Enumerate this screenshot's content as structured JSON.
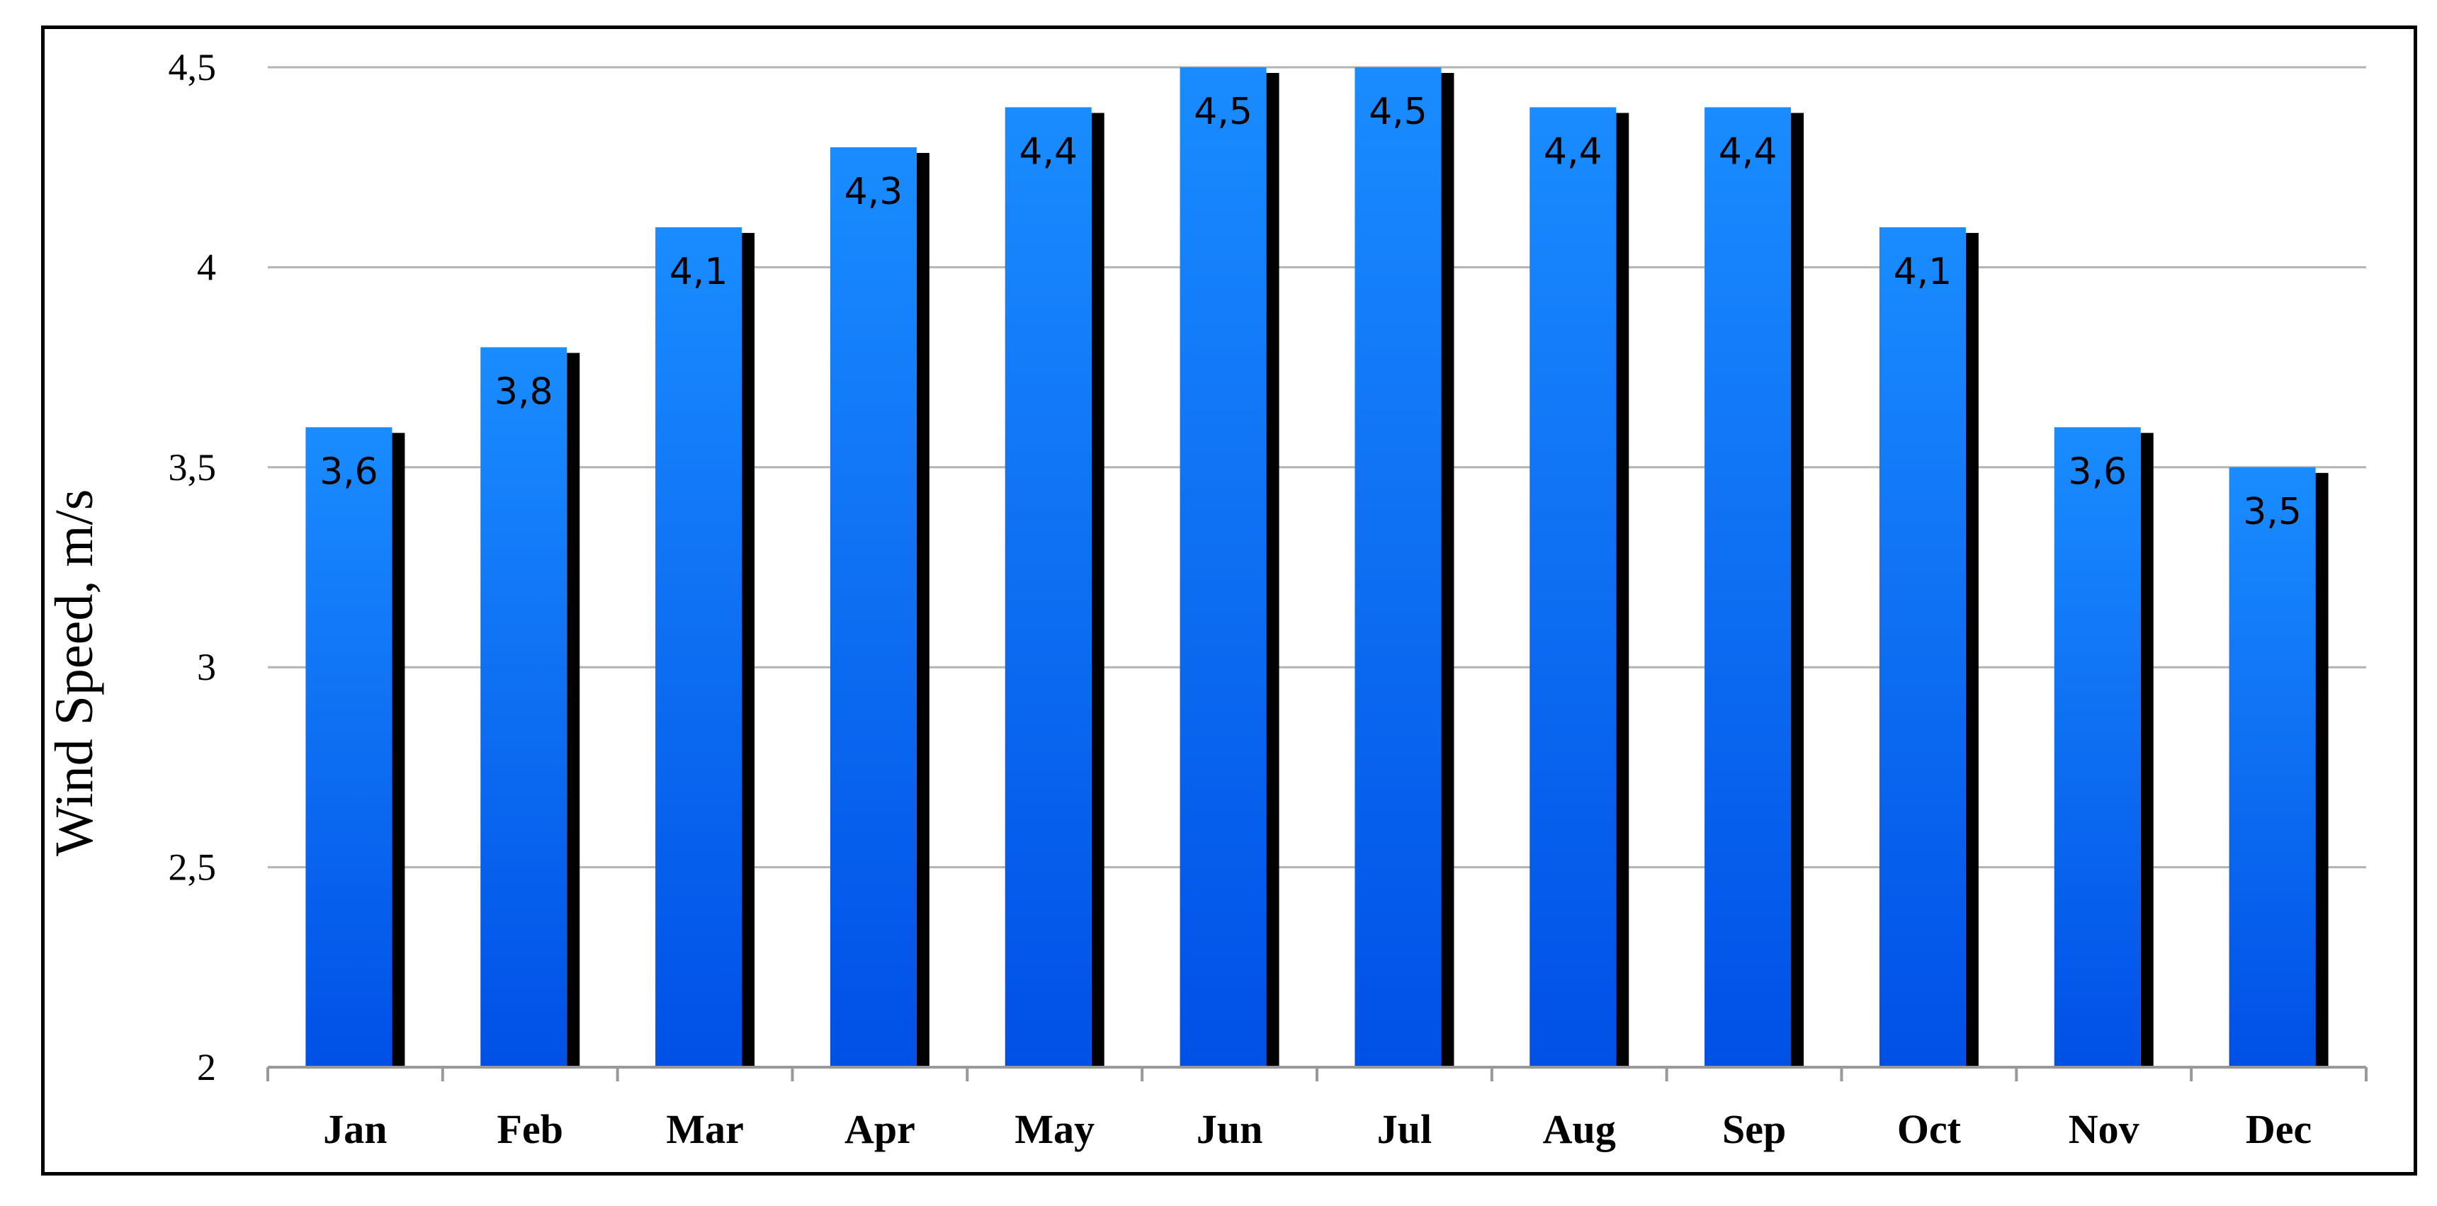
{
  "chart_data": {
    "type": "bar",
    "title": "",
    "xlabel": "",
    "ylabel": "Wind Speed, m/s",
    "categories": [
      "Jan",
      "Feb",
      "Mar",
      "Apr",
      "May",
      "Jun",
      "Jul",
      "Aug",
      "Sep",
      "Oct",
      "Nov",
      "Dec"
    ],
    "values": [
      3.6,
      3.8,
      4.1,
      4.3,
      4.4,
      4.5,
      4.5,
      4.4,
      4.4,
      4.1,
      3.6,
      3.5
    ],
    "data_labels": [
      "3,6",
      "3,8",
      "4,1",
      "4,3",
      "4,4",
      "4,5",
      "4,5",
      "4,4",
      "4,4",
      "4,1",
      "3,6",
      "3,5"
    ],
    "ylim": [
      2,
      4.5
    ],
    "yticks": [
      2,
      2.5,
      3,
      3.5,
      4,
      4.5
    ],
    "ytick_labels": [
      "2",
      "2,5",
      "3",
      "3,5",
      "4",
      "4,5"
    ],
    "grid": true,
    "legend": "none",
    "colors": {
      "bar_top": "#1a8cff",
      "bar_bottom": "#0050e6",
      "bar_shadow": "#000000",
      "gridline": "#b3b3b3",
      "axis": "#999999"
    }
  }
}
